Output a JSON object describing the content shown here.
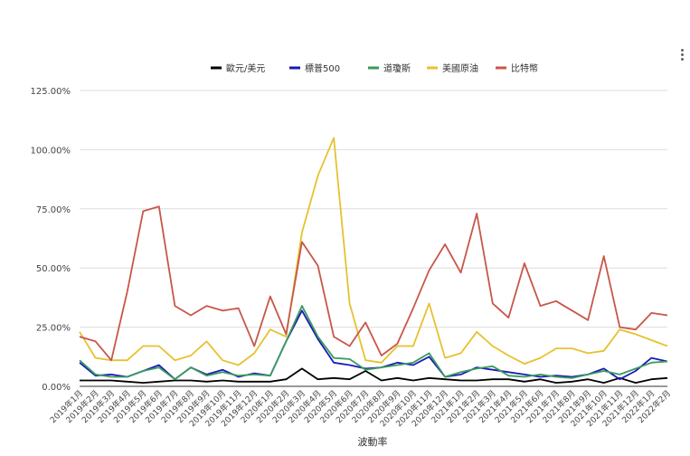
{
  "chart_data": {
    "type": "line",
    "title": "",
    "xlabel": "波動率",
    "ylabel": "",
    "ylim": [
      0,
      125
    ],
    "y_ticks": [
      "0.00%",
      "25.00%",
      "50.00%",
      "75.00%",
      "100.00%",
      "125.00%"
    ],
    "y_tick_values": [
      0,
      25,
      50,
      75,
      100,
      125
    ],
    "grid": true,
    "legend_position": "top",
    "categories": [
      "2019年1月",
      "2019年2月",
      "2019年3月",
      "2019年4月",
      "2019年5月",
      "2019年6月",
      "2019年7月",
      "2019年8月",
      "2019年9月",
      "2019年10月",
      "2019年11月",
      "2019年12月",
      "2020年1月",
      "2020年2月",
      "2020年3月",
      "2020年4月",
      "2020年5月",
      "2020年6月",
      "2020年7月",
      "2020年8月",
      "2020年9月",
      "2020年10月",
      "2020年11月",
      "2020年12月",
      "2021年1月",
      "2021年2月",
      "2021年3月",
      "2021年4月",
      "2021年5月",
      "2021年6月",
      "2021年7月",
      "2021年8月",
      "2021年9月",
      "2021年10月",
      "2021年11月",
      "2021年12月",
      "2022年1月",
      "2022年2月"
    ],
    "series": [
      {
        "name": "歐元/美元",
        "color": "#000000",
        "values": [
          2.5,
          2.5,
          2.5,
          2,
          1.5,
          2,
          2.5,
          2.5,
          2,
          2.5,
          2,
          2,
          2,
          3,
          7.5,
          3,
          3.5,
          3,
          6.5,
          2.5,
          3.5,
          2.5,
          3.5,
          3,
          2.5,
          2.5,
          3,
          3,
          2,
          3,
          1.5,
          2,
          3,
          1.5,
          3.5,
          1.5,
          3,
          3.5
        ]
      },
      {
        "name": "標普500",
        "color": "#1a1ab8",
        "values": [
          10,
          4.5,
          5,
          4,
          6.5,
          9,
          3,
          8,
          5,
          7,
          4,
          5.5,
          4.5,
          19,
          32,
          20,
          10,
          9,
          7.5,
          8,
          10,
          9,
          12.5,
          4,
          5,
          8,
          7,
          6,
          5,
          4,
          4.5,
          4,
          5,
          7.5,
          3,
          6.5,
          12,
          10.5
        ]
      },
      {
        "name": "道瓊斯",
        "color": "#3a9b5c",
        "values": [
          11,
          5,
          4,
          4,
          6.5,
          8,
          3,
          8,
          4.5,
          6,
          4.5,
          5,
          4.5,
          19,
          34,
          21,
          12,
          11.5,
          7,
          8,
          9,
          10,
          14,
          4,
          6,
          7.5,
          8.5,
          4.5,
          4,
          5,
          4,
          3.5,
          5,
          6.5,
          5,
          7.5,
          10,
          10.5
        ]
      },
      {
        "name": "美國原油",
        "color": "#e8c12e",
        "values": [
          23,
          12,
          11,
          11,
          17,
          17,
          11,
          13,
          19,
          11,
          9,
          14,
          24,
          21,
          65,
          89,
          105,
          35,
          11,
          10,
          17,
          17,
          35,
          12,
          14,
          23,
          17,
          13,
          9.5,
          12,
          16,
          16,
          14,
          15,
          24,
          22,
          19.5,
          17
        ]
      },
      {
        "name": "比特幣",
        "color": "#c8564a",
        "values": [
          21,
          19,
          11,
          40,
          74,
          76,
          34,
          30,
          34,
          32,
          33,
          17,
          38,
          22,
          61,
          51,
          21,
          17,
          27,
          13,
          18,
          33,
          49,
          60,
          48,
          73,
          35,
          29,
          52,
          34,
          36,
          32,
          28,
          55,
          25,
          24,
          31,
          30
        ]
      }
    ]
  }
}
